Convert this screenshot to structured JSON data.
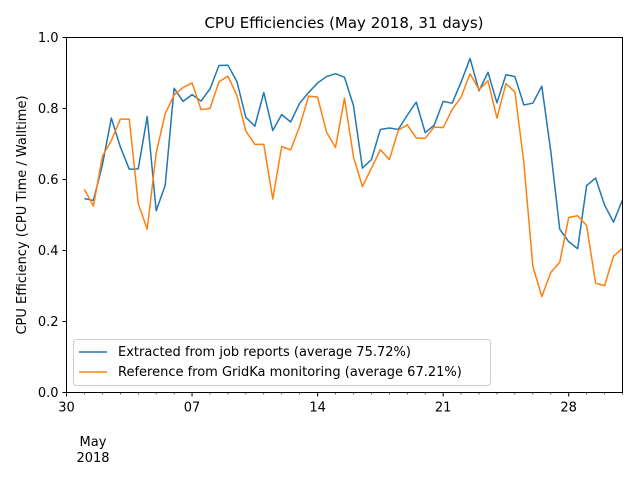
{
  "chart_data": {
    "type": "line",
    "title": "CPU Efficiencies (May 2018, 31 days)",
    "xlabel": "",
    "ylabel": "CPU Efficiency (CPU Time / Walltime)",
    "xlim": [
      "2018-04-30",
      "2018-05-31"
    ],
    "ylim": [
      0,
      1.0
    ],
    "grid": false,
    "legend_position": "lower-left",
    "x_ticks": [
      {
        "date": "2018-04-30",
        "label": "30"
      },
      {
        "date": "2018-05-07",
        "label": "07"
      },
      {
        "date": "2018-05-14",
        "label": "14"
      },
      {
        "date": "2018-05-21",
        "label": "21"
      },
      {
        "date": "2018-05-28",
        "label": "28"
      }
    ],
    "x_offset_label": [
      "May",
      "2018"
    ],
    "y_ticks": [
      0.0,
      0.2,
      0.4,
      0.6,
      0.8,
      1.0
    ],
    "y_tick_labels": [
      "0.0",
      "0.2",
      "0.4",
      "0.6",
      "0.8",
      "1.0"
    ],
    "x": [
      "2018-05-01 00:00",
      "2018-05-01 12:00",
      "2018-05-02 00:00",
      "2018-05-02 12:00",
      "2018-05-03 00:00",
      "2018-05-03 12:00",
      "2018-05-04 00:00",
      "2018-05-04 12:00",
      "2018-05-05 00:00",
      "2018-05-05 12:00",
      "2018-05-06 00:00",
      "2018-05-06 12:00",
      "2018-05-07 00:00",
      "2018-05-07 12:00",
      "2018-05-08 00:00",
      "2018-05-08 12:00",
      "2018-05-09 00:00",
      "2018-05-09 12:00",
      "2018-05-10 00:00",
      "2018-05-10 12:00",
      "2018-05-11 00:00",
      "2018-05-11 12:00",
      "2018-05-12 00:00",
      "2018-05-12 12:00",
      "2018-05-13 00:00",
      "2018-05-13 12:00",
      "2018-05-14 00:00",
      "2018-05-14 12:00",
      "2018-05-15 00:00",
      "2018-05-15 12:00",
      "2018-05-16 00:00",
      "2018-05-16 12:00",
      "2018-05-17 00:00",
      "2018-05-17 12:00",
      "2018-05-18 00:00",
      "2018-05-18 12:00",
      "2018-05-19 00:00",
      "2018-05-19 12:00",
      "2018-05-20 00:00",
      "2018-05-20 12:00",
      "2018-05-21 00:00",
      "2018-05-21 12:00",
      "2018-05-22 00:00",
      "2018-05-22 12:00",
      "2018-05-23 00:00",
      "2018-05-23 12:00",
      "2018-05-24 00:00",
      "2018-05-24 12:00",
      "2018-05-25 00:00",
      "2018-05-25 12:00",
      "2018-05-26 00:00",
      "2018-05-26 12:00",
      "2018-05-27 00:00",
      "2018-05-27 12:00",
      "2018-05-28 00:00",
      "2018-05-28 12:00",
      "2018-05-29 00:00",
      "2018-05-29 12:00",
      "2018-05-30 00:00",
      "2018-05-30 12:00",
      "2018-05-31 00:00"
    ],
    "series": [
      {
        "name": "Extracted from job reports (average 75.72%)",
        "color": "#1f77b4",
        "values": [
          0.546,
          0.541,
          0.641,
          0.773,
          0.692,
          0.629,
          0.63,
          0.777,
          0.512,
          0.583,
          0.857,
          0.82,
          0.839,
          0.821,
          0.855,
          0.921,
          0.922,
          0.876,
          0.775,
          0.75,
          0.845,
          0.738,
          0.783,
          0.762,
          0.815,
          0.845,
          0.872,
          0.89,
          0.898,
          0.888,
          0.808,
          0.632,
          0.656,
          0.741,
          0.745,
          0.741,
          0.781,
          0.818,
          0.732,
          0.753,
          0.82,
          0.815,
          0.874,
          0.941,
          0.85,
          0.902,
          0.816,
          0.895,
          0.89,
          0.81,
          0.815,
          0.863,
          0.68,
          0.46,
          0.425,
          0.405,
          0.583,
          0.604,
          0.528,
          0.48,
          0.543
        ]
      },
      {
        "name": "Reference from GridKa monitoring (average 67.21%)",
        "color": "#ff7f0e",
        "values": [
          0.572,
          0.525,
          0.665,
          0.71,
          0.77,
          0.77,
          0.532,
          0.46,
          0.675,
          0.785,
          0.838,
          0.859,
          0.872,
          0.797,
          0.8,
          0.875,
          0.891,
          0.837,
          0.736,
          0.699,
          0.699,
          0.545,
          0.693,
          0.683,
          0.75,
          0.835,
          0.832,
          0.733,
          0.69,
          0.829,
          0.664,
          0.58,
          0.632,
          0.684,
          0.656,
          0.739,
          0.754,
          0.717,
          0.716,
          0.748,
          0.746,
          0.797,
          0.832,
          0.898,
          0.853,
          0.878,
          0.773,
          0.87,
          0.847,
          0.647,
          0.356,
          0.27,
          0.338,
          0.367,
          0.493,
          0.498,
          0.47,
          0.308,
          0.301,
          0.384,
          0.406
        ]
      }
    ]
  }
}
